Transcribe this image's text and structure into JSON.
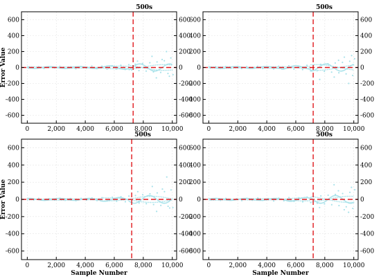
{
  "chart_data": [
    {
      "type": "scatter",
      "title": "",
      "annotation": "500s",
      "xlabel": "",
      "ylabel": "Error Value",
      "xlim": [
        -400,
        10300
      ],
      "ylim": [
        -700,
        700
      ],
      "xticks": [
        0,
        2000,
        4000,
        6000,
        8000,
        10000
      ],
      "xtick_labels": [
        "0",
        "2,000",
        "4,000",
        "6,000",
        "8,000",
        "10,000"
      ],
      "yticks": [
        -600,
        -400,
        -200,
        0,
        200,
        400,
        600
      ],
      "ytick_labels": [
        "-600",
        "-400",
        "-200",
        "0",
        "200",
        "400",
        "600"
      ],
      "right_ytick_labels": [
        "-600",
        "-400",
        "-200",
        "0",
        "200",
        "400",
        "600"
      ],
      "grid": true,
      "vline_x": 7300,
      "hline_y": 0,
      "point_color": "#a9e2ea",
      "line_color": "#e0161b",
      "series": [
        {
          "x": [
            100,
            420,
            780,
            1150,
            1500,
            1880,
            2250,
            2600,
            2980,
            3350,
            3700,
            4080,
            4450,
            4800,
            5150,
            5500,
            5850,
            6150,
            6450,
            6750,
            7000,
            7200,
            7450,
            7700,
            7950,
            8200,
            8450,
            8700,
            8950,
            9200,
            9450,
            9700,
            9900,
            10050,
            8600,
            9300,
            9800,
            7600,
            8900,
            9600
          ],
          "y": [
            6,
            -8,
            10,
            -12,
            9,
            -6,
            14,
            -10,
            8,
            -15,
            12,
            -9,
            18,
            -14,
            16,
            -20,
            22,
            -18,
            28,
            -25,
            35,
            -30,
            42,
            -38,
            50,
            -45,
            60,
            -55,
            70,
            -62,
            85,
            -75,
            120,
            -90,
            140,
            100,
            -110,
            80,
            -130,
            200
          ]
        }
      ]
    },
    {
      "type": "scatter",
      "title": "",
      "annotation": "500s",
      "xlabel": "",
      "ylabel": "",
      "xlim": [
        -400,
        10300
      ],
      "ylim": [
        -700,
        700
      ],
      "xticks": [
        0,
        2000,
        4000,
        6000,
        8000,
        10000
      ],
      "xtick_labels": [
        "0",
        "2,000",
        "4,000",
        "6,000",
        "8,000",
        "10,000"
      ],
      "yticks": [
        -600,
        -400,
        -200,
        0,
        200,
        400,
        600
      ],
      "ytick_labels": [
        "-600",
        "-400",
        "-200",
        "0",
        "200",
        "400",
        "600"
      ],
      "right_ytick_labels": [
        "-600",
        "-400",
        "-200",
        "0",
        "200",
        "400",
        "600"
      ],
      "grid": true,
      "vline_x": 7200,
      "hline_y": 0,
      "point_color": "#a9e2ea",
      "line_color": "#e0161b",
      "series": [
        {
          "x": [
            120,
            460,
            800,
            1170,
            1520,
            1900,
            2270,
            2620,
            3000,
            3370,
            3720,
            4100,
            4470,
            4820,
            5170,
            5520,
            5870,
            6170,
            6470,
            6770,
            7020,
            7220,
            7470,
            7720,
            7970,
            8220,
            8470,
            8720,
            8970,
            9220,
            9470,
            9720,
            9920,
            10060,
            8650,
            9350,
            9850,
            7650,
            8950,
            9650
          ],
          "y": [
            -7,
            9,
            -11,
            12,
            -8,
            7,
            -13,
            11,
            -9,
            14,
            -12,
            10,
            -17,
            15,
            -18,
            21,
            -20,
            19,
            -26,
            27,
            -33,
            31,
            -40,
            39,
            -48,
            47,
            -58,
            56,
            -66,
            64,
            -80,
            78,
            -100,
            110,
            -120,
            130,
            150,
            -150,
            90,
            -200
          ]
        }
      ]
    },
    {
      "type": "scatter",
      "title": "",
      "annotation": "500s",
      "xlabel": "Sample Number",
      "ylabel": "Error Value",
      "xlim": [
        -400,
        10300
      ],
      "ylim": [
        -700,
        700
      ],
      "xticks": [
        0,
        2000,
        4000,
        6000,
        8000,
        10000
      ],
      "xtick_labels": [
        "0",
        "2,000",
        "4,000",
        "6,000",
        "8,000",
        "10,000"
      ],
      "yticks": [
        -600,
        -400,
        -200,
        0,
        200,
        400,
        600
      ],
      "ytick_labels": [
        "-600",
        "-400",
        "-200",
        "0",
        "200",
        "400",
        "600"
      ],
      "right_ytick_labels": [
        "-600",
        "-400",
        "-200",
        "0",
        "200",
        "400",
        "600"
      ],
      "grid": true,
      "vline_x": 7200,
      "hline_y": 0,
      "point_color": "#a9e2ea",
      "line_color": "#e0161b",
      "series": [
        {
          "x": [
            90,
            440,
            790,
            1160,
            1510,
            1890,
            2260,
            2610,
            2990,
            3360,
            3710,
            4090,
            4460,
            4810,
            5160,
            5510,
            5860,
            6160,
            6460,
            6760,
            7010,
            7210,
            7460,
            7710,
            7960,
            8210,
            8460,
            8710,
            8960,
            9210,
            9460,
            9710,
            9910,
            10040,
            8620,
            9320,
            9820,
            7620,
            8920,
            9620
          ],
          "y": [
            8,
            -6,
            12,
            -10,
            7,
            -9,
            13,
            -11,
            10,
            -14,
            11,
            -8,
            16,
            -13,
            19,
            -17,
            24,
            -21,
            30,
            -27,
            38,
            -34,
            45,
            -41,
            55,
            -50,
            65,
            -60,
            75,
            -70,
            90,
            -80,
            110,
            -95,
            150,
            120,
            -100,
            90,
            -140,
            260
          ]
        }
      ]
    },
    {
      "type": "scatter",
      "title": "",
      "annotation": "500s",
      "xlabel": "Sample Number",
      "ylabel": "",
      "xlim": [
        -400,
        10300
      ],
      "ylim": [
        -700,
        700
      ],
      "xticks": [
        0,
        2000,
        4000,
        6000,
        8000,
        10000
      ],
      "xtick_labels": [
        "0",
        "2,000",
        "4,000",
        "6,000",
        "8,000",
        "10,000"
      ],
      "yticks": [
        -600,
        -400,
        -200,
        0,
        200,
        400,
        600
      ],
      "ytick_labels": [
        "-600",
        "-400",
        "-200",
        "0",
        "200",
        "400",
        "600"
      ],
      "right_ytick_labels": [
        "-600",
        "-400",
        "-200",
        "0",
        "200",
        "400",
        "600"
      ],
      "grid": true,
      "vline_x": 7200,
      "hline_y": 0,
      "point_color": "#a9e2ea",
      "line_color": "#e0161b",
      "series": [
        {
          "x": [
            110,
            450,
            810,
            1180,
            1530,
            1910,
            2280,
            2630,
            3010,
            3380,
            3730,
            4110,
            4480,
            4830,
            5180,
            5530,
            5880,
            6180,
            6480,
            6780,
            7030,
            7230,
            7480,
            7730,
            7980,
            8230,
            8480,
            8730,
            8980,
            9230,
            9480,
            9730,
            9930,
            10070,
            8640,
            9340,
            9840,
            7640,
            8940,
            9640
          ],
          "y": [
            -6,
            8,
            -12,
            11,
            -9,
            8,
            -14,
            12,
            -10,
            15,
            -11,
            9,
            -18,
            14,
            -16,
            20,
            -22,
            18,
            -28,
            26,
            -36,
            32,
            -44,
            40,
            -52,
            48,
            -62,
            58,
            -72,
            68,
            -86,
            82,
            -105,
            112,
            170,
            -120,
            140,
            -95,
            100,
            -150
          ]
        }
      ]
    }
  ]
}
